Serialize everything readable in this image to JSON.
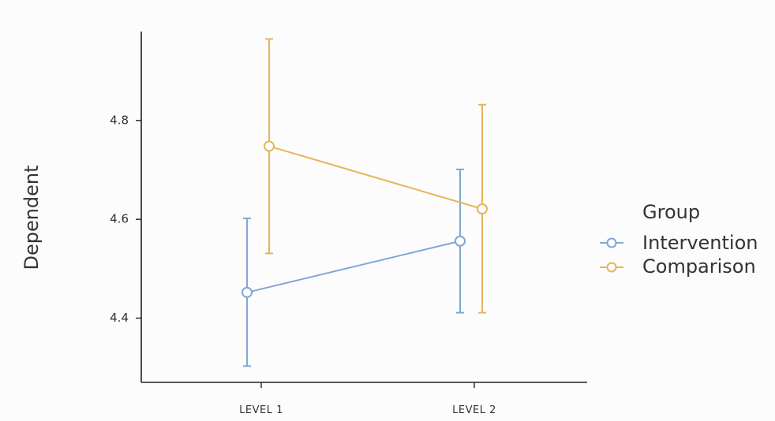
{
  "chart_data": {
    "type": "line",
    "ylabel": "Dependent",
    "categories": [
      "LEVEL 1",
      "LEVEL 2"
    ],
    "y_ticks": [
      "4.4",
      "4.6",
      "4.8"
    ],
    "ylim": [
      4.27,
      4.98
    ],
    "legend": {
      "title": "Group",
      "position": "right"
    },
    "series": [
      {
        "name": "Intervention",
        "color": "#7fa7d4",
        "values": [
          4.452,
          4.556
        ],
        "lower": [
          4.303,
          4.411
        ],
        "upper": [
          4.602,
          4.701
        ]
      },
      {
        "name": "Comparison",
        "color": "#e6b55a",
        "values": [
          4.748,
          4.621
        ],
        "lower": [
          4.531,
          4.411
        ],
        "upper": [
          4.965,
          4.832
        ]
      }
    ],
    "grid": false
  }
}
